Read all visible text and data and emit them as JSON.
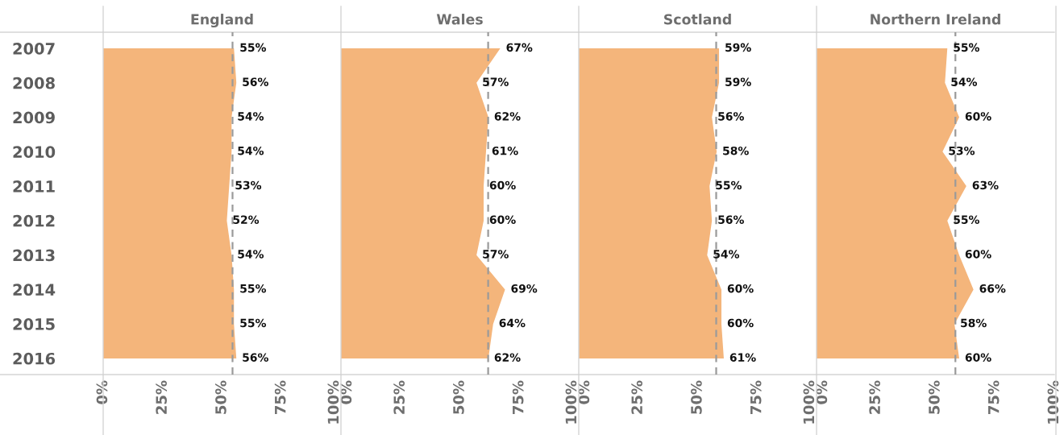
{
  "chart_data": [
    {
      "type": "area",
      "orientation": "horizontal",
      "title": "England",
      "categories": [
        "2007",
        "2008",
        "2009",
        "2010",
        "2011",
        "2012",
        "2013",
        "2014",
        "2015",
        "2016"
      ],
      "values": [
        55,
        56,
        54,
        54,
        53,
        52,
        54,
        55,
        55,
        56
      ],
      "value_labels": [
        "55%",
        "56%",
        "54%",
        "54%",
        "53%",
        "52%",
        "54%",
        "55%",
        "55%",
        "56%"
      ],
      "color": "#f4b57b",
      "xlim": [
        0,
        100
      ],
      "xticks": [
        {
          "value": 0,
          "label": "0%"
        },
        {
          "value": 25,
          "label": "25%"
        },
        {
          "value": 50,
          "label": "50%"
        },
        {
          "value": 75,
          "label": "75%"
        },
        {
          "value": 100,
          "label": "100%"
        }
      ],
      "ref_lines": [
        {
          "axis": "x",
          "value": 54.4,
          "color": "#9a9a9a",
          "line_style": "dashed"
        }
      ]
    },
    {
      "type": "area",
      "orientation": "horizontal",
      "title": "Wales",
      "categories": [
        "2007",
        "2008",
        "2009",
        "2010",
        "2011",
        "2012",
        "2013",
        "2014",
        "2015",
        "2016"
      ],
      "values": [
        67,
        57,
        62,
        61,
        60,
        60,
        57,
        69,
        64,
        62
      ],
      "value_labels": [
        "67%",
        "57%",
        "62%",
        "61%",
        "60%",
        "60%",
        "57%",
        "69%",
        "64%",
        "62%"
      ],
      "color": "#f4b57b",
      "xlim": [
        0,
        100
      ],
      "xticks": [
        {
          "value": 0,
          "label": "0%"
        },
        {
          "value": 25,
          "label": "25%"
        },
        {
          "value": 50,
          "label": "50%"
        },
        {
          "value": 75,
          "label": "75%"
        },
        {
          "value": 100,
          "label": "100%"
        }
      ],
      "tick_labels": "x",
      "ref_lines": [
        {
          "axis": "x",
          "value": 61.9,
          "color": "#9a9a9a",
          "line_style": "dashed"
        }
      ]
    },
    {
      "type": "area",
      "orientation": "horizontal",
      "title": "Scotland",
      "categories": [
        "2007",
        "2008",
        "2009",
        "2010",
        "2011",
        "2012",
        "2013",
        "2014",
        "2015",
        "2016"
      ],
      "values": [
        59,
        59,
        56,
        58,
        55,
        56,
        54,
        60,
        60,
        61
      ],
      "value_labels": [
        "59%",
        "59%",
        "56%",
        "58%",
        "55%",
        "56%",
        "54%",
        "60%",
        "60%",
        "61%"
      ],
      "color": "#f4b57b",
      "xlim": [
        0,
        100
      ],
      "xticks": [
        {
          "value": 0,
          "label": "0%"
        },
        {
          "value": 25,
          "label": "25%"
        },
        {
          "value": 50,
          "label": "50%"
        },
        {
          "value": 75,
          "label": "75%"
        },
        {
          "value": 100,
          "label": "100%"
        }
      ],
      "tick_labels": "x",
      "ref_lines": [
        {
          "axis": "x",
          "value": 57.8,
          "color": "#9a9a9a",
          "line_style": "dashed"
        }
      ]
    },
    {
      "type": "area",
      "orientation": "horizontal",
      "title": "Northern Ireland",
      "categories": [
        "2007",
        "2008",
        "2009",
        "2010",
        "2011",
        "2012",
        "2013",
        "2014",
        "2015",
        "2016"
      ],
      "values": [
        55,
        54,
        60,
        53,
        63,
        55,
        60,
        66,
        58,
        60
      ],
      "value_labels": [
        "55%",
        "54%",
        "60%",
        "53%",
        "63%",
        "55%",
        "60%",
        "66%",
        "58%",
        "60%"
      ],
      "color": "#f4b57b",
      "xlim": [
        0,
        100
      ],
      "xticks": [
        {
          "value": 0,
          "label": "0%"
        },
        {
          "value": 25,
          "label": "25%"
        },
        {
          "value": 50,
          "label": "50%"
        },
        {
          "value": 75,
          "label": "75%"
        },
        {
          "value": 100,
          "label": "100%"
        }
      ],
      "tick_labels": "x",
      "ref_lines": [
        {
          "axis": "x",
          "value": 58.4,
          "color": "#9a9a9a",
          "line_style": "dashed"
        }
      ]
    }
  ]
}
